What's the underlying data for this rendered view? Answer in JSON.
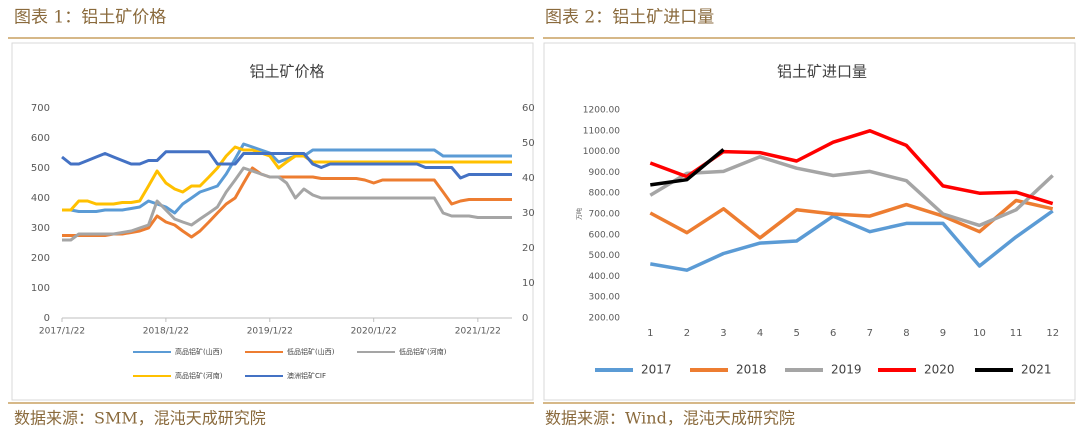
{
  "captions": [
    "图表 1：铝土矿价格",
    "图表 2：铝土矿进口量"
  ],
  "sources": [
    "数据来源：SMM，混沌天成研究院",
    "数据来源：Wind，混沌天成研究院"
  ],
  "chart_data": [
    {
      "type": "line",
      "title": "铝土矿价格",
      "x": [
        "2017/1/22",
        "2017/2/22",
        "2017/3/22",
        "2017/4/22",
        "2017/5/22",
        "2017/6/22",
        "2017/7/22",
        "2017/8/22",
        "2017/9/22",
        "2017/10/22",
        "2017/11/22",
        "2017/12/22",
        "2018/1/22",
        "2018/2/22",
        "2018/3/22",
        "2018/4/22",
        "2018/5/22",
        "2018/6/22",
        "2018/7/22",
        "2018/8/22",
        "2018/9/22",
        "2018/10/22",
        "2018/11/22",
        "2018/12/22",
        "2019/1/22",
        "2019/2/22",
        "2019/3/22",
        "2019/4/22",
        "2019/5/22",
        "2019/6/22",
        "2019/7/22",
        "2019/8/22",
        "2019/9/22",
        "2019/10/22",
        "2019/11/22",
        "2019/12/22",
        "2020/1/22",
        "2020/2/22",
        "2020/3/22",
        "2020/4/22",
        "2020/5/22",
        "2020/6/22",
        "2020/7/22",
        "2020/8/22",
        "2020/9/22",
        "2020/10/22",
        "2020/11/22",
        "2020/12/22",
        "2021/1/22",
        "2021/2/22",
        "2021/3/22",
        "2021/4/22",
        "2021/5/22"
      ],
      "xlim": [
        "2017/1/22",
        "2021/5/22"
      ],
      "xticks": [
        "2017/1/22",
        "2018/1/22",
        "2019/1/22",
        "2020/1/22",
        "2021/1/22"
      ],
      "ylim": [
        0,
        700
      ],
      "yticks": [
        0,
        100,
        200,
        300,
        400,
        500,
        600,
        700
      ],
      "y2lim": [
        0,
        60
      ],
      "y2ticks": [
        0,
        10,
        20,
        30,
        40,
        50,
        60
      ],
      "series": [
        {
          "name": "高品铝矿(山西)",
          "color": "#5b9bd5",
          "values": [
            360,
            360,
            355,
            355,
            355,
            360,
            360,
            360,
            365,
            370,
            390,
            380,
            370,
            350,
            380,
            400,
            420,
            430,
            440,
            480,
            530,
            580,
            570,
            560,
            550,
            520,
            530,
            540,
            540,
            560,
            560,
            560,
            560,
            560,
            560,
            560,
            560,
            560,
            560,
            560,
            560,
            560,
            560,
            560,
            540,
            540,
            540,
            540,
            540,
            540,
            540,
            540,
            540
          ]
        },
        {
          "name": "低品铝矿(山西)",
          "color": "#ed7d31",
          "values": [
            275,
            275,
            275,
            275,
            275,
            275,
            280,
            280,
            285,
            290,
            300,
            340,
            320,
            310,
            290,
            270,
            290,
            320,
            350,
            380,
            400,
            450,
            500,
            480,
            470,
            470,
            470,
            470,
            470,
            470,
            465,
            465,
            465,
            465,
            465,
            460,
            450,
            460,
            460,
            460,
            460,
            460,
            460,
            460,
            420,
            380,
            390,
            395,
            395,
            395,
            395,
            395,
            395
          ]
        },
        {
          "name": "低品铝矿(河南)",
          "color": "#a5a5a5",
          "values": [
            260,
            260,
            280,
            280,
            280,
            280,
            280,
            285,
            290,
            300,
            310,
            390,
            360,
            330,
            320,
            310,
            330,
            350,
            370,
            420,
            460,
            500,
            490,
            480,
            470,
            470,
            450,
            400,
            430,
            410,
            400,
            400,
            400,
            400,
            400,
            400,
            400,
            400,
            400,
            400,
            400,
            400,
            400,
            400,
            350,
            340,
            340,
            340,
            335,
            335,
            335,
            335,
            335
          ]
        },
        {
          "name": "高品铝矿(河南)",
          "color": "#ffc000",
          "values": [
            360,
            360,
            390,
            390,
            380,
            380,
            380,
            385,
            385,
            390,
            440,
            490,
            450,
            430,
            420,
            440,
            440,
            470,
            500,
            540,
            570,
            560,
            560,
            550,
            540,
            500,
            520,
            540,
            540,
            520,
            520,
            520,
            520,
            520,
            520,
            520,
            520,
            520,
            520,
            520,
            520,
            520,
            520,
            520,
            520,
            520,
            520,
            520,
            520,
            520,
            520,
            520,
            520
          ]
        },
        {
          "name": "澳洲铝矿CIF",
          "color": "#4472c4",
          "axis": "y2",
          "values": [
            46,
            44,
            44,
            45,
            46,
            47,
            46,
            45,
            44,
            44,
            45,
            45,
            47.5,
            47.5,
            47.5,
            47.5,
            47.5,
            47.5,
            44,
            44,
            44,
            47,
            47,
            47,
            47,
            47,
            47,
            47,
            47,
            44,
            43,
            44,
            44,
            44,
            44,
            44,
            44,
            44,
            44,
            44,
            44,
            44,
            43,
            43,
            43,
            43,
            40,
            41,
            41,
            41,
            41,
            41,
            41
          ]
        }
      ]
    },
    {
      "type": "line",
      "title": "铝土矿进口量",
      "y_label": "万吨",
      "categories": [
        "1",
        "2",
        "3",
        "4",
        "5",
        "6",
        "7",
        "8",
        "9",
        "10",
        "11",
        "12"
      ],
      "ylim": [
        200,
        1200
      ],
      "yticks": [
        {
          "value": 200,
          "label": "200.00"
        },
        {
          "value": 300,
          "label": "300.00"
        },
        {
          "value": 400,
          "label": "400.00"
        },
        {
          "value": 500,
          "label": "500.00"
        },
        {
          "value": 600,
          "label": "600.00"
        },
        {
          "value": 700,
          "label": "700.00"
        },
        {
          "value": 800,
          "label": "800.00"
        },
        {
          "value": 900,
          "label": "900.00"
        },
        {
          "value": 1000,
          "label": "1000.00"
        },
        {
          "value": 1100,
          "label": "1100.00"
        },
        {
          "value": 1200,
          "label": "1200.00"
        }
      ],
      "series": [
        {
          "name": "2017",
          "color": "#5b9bd5",
          "values": [
            460,
            430,
            510,
            560,
            570,
            690,
            615,
            655,
            655,
            450,
            590,
            715
          ]
        },
        {
          "name": "2018",
          "color": "#ed7d31",
          "values": [
            705,
            610,
            725,
            585,
            720,
            700,
            690,
            745,
            690,
            615,
            765,
            725
          ]
        },
        {
          "name": "2019",
          "color": "#a5a5a5",
          "values": [
            790,
            895,
            905,
            975,
            920,
            885,
            905,
            860,
            700,
            645,
            720,
            885
          ]
        },
        {
          "name": "2020",
          "color": "#ff0000",
          "values": [
            945,
            880,
            1000,
            995,
            955,
            1045,
            1100,
            1030,
            835,
            800,
            805,
            750
          ]
        },
        {
          "name": "2021",
          "color": "#000000",
          "values": [
            840,
            865,
            1010,
            null,
            null,
            null,
            null,
            null,
            null,
            null,
            null,
            null
          ]
        }
      ]
    }
  ]
}
